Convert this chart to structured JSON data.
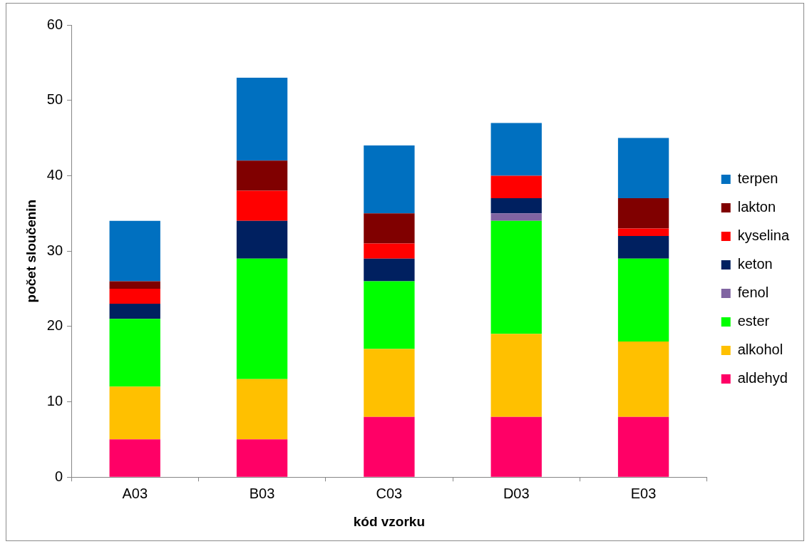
{
  "chart_data": {
    "type": "bar",
    "stacked": true,
    "xlabel": "kód vzorku",
    "ylabel": "počet sloučenin",
    "categories": [
      "A03",
      "B03",
      "C03",
      "D03",
      "E03"
    ],
    "ylim": [
      0,
      60
    ],
    "yticks": [
      0,
      10,
      20,
      30,
      40,
      50,
      60
    ],
    "grid": false,
    "legend": "right",
    "series": [
      {
        "name": "aldehyd",
        "color": "#ff0066",
        "values": [
          5,
          5,
          8,
          8,
          8
        ]
      },
      {
        "name": "alkohol",
        "color": "#ffc000",
        "values": [
          7,
          8,
          9,
          11,
          10
        ]
      },
      {
        "name": "ester",
        "color": "#00ff00",
        "values": [
          9,
          16,
          9,
          15,
          11
        ]
      },
      {
        "name": "fenol",
        "color": "#8064a2",
        "values": [
          0,
          0,
          0,
          1,
          0
        ]
      },
      {
        "name": "keton",
        "color": "#002060",
        "values": [
          2,
          5,
          3,
          2,
          3
        ]
      },
      {
        "name": "kyselina",
        "color": "#ff0000",
        "values": [
          2,
          4,
          2,
          3,
          1
        ]
      },
      {
        "name": "lakton",
        "color": "#800000",
        "values": [
          1,
          4,
          4,
          0,
          4
        ]
      },
      {
        "name": "terpen",
        "color": "#0070c0",
        "values": [
          8,
          11,
          9,
          7,
          8
        ]
      }
    ]
  }
}
